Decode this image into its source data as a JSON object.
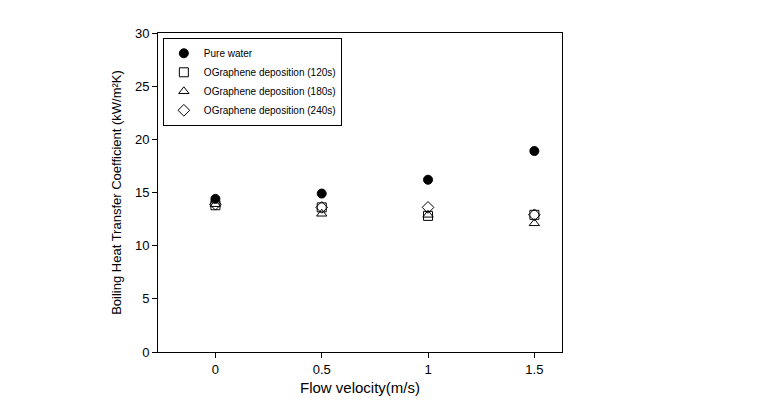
{
  "chart_data": {
    "type": "scatter",
    "x_label": "Flow velocity(m/s)",
    "y_label": "Boiling Heat Transfer Coefficient (kW/m²K)",
    "x": [
      0,
      0.5,
      1,
      1.5
    ],
    "series": [
      {
        "name": "Pure water",
        "color": "#000000",
        "marker": "circle",
        "values": [
          14.4,
          14.9,
          16.2,
          18.9
        ]
      },
      {
        "name": "OGraphene deposition (120s)",
        "color": "#000000",
        "marker": "square-open",
        "values": [
          13.8,
          13.6,
          12.8,
          12.9
        ]
      },
      {
        "name": "OGraphene deposition (180s)",
        "color": "#000000",
        "marker": "triangle-up-open",
        "values": [
          13.9,
          13.0,
          12.9,
          12.1
        ]
      },
      {
        "name": "OGraphene deposition (240s)",
        "color": "#000000",
        "marker": "diamond-open",
        "values": [
          13.9,
          13.6,
          13.6,
          12.9
        ]
      }
    ],
    "xlim": [
      -0.27,
      1.63
    ],
    "xticks": [
      0,
      0.5,
      1,
      1.5
    ],
    "ylim": [
      0,
      30
    ],
    "yticks": [
      0,
      5,
      10,
      15,
      20,
      25,
      30
    ],
    "grid": false,
    "legend": "upper left"
  }
}
